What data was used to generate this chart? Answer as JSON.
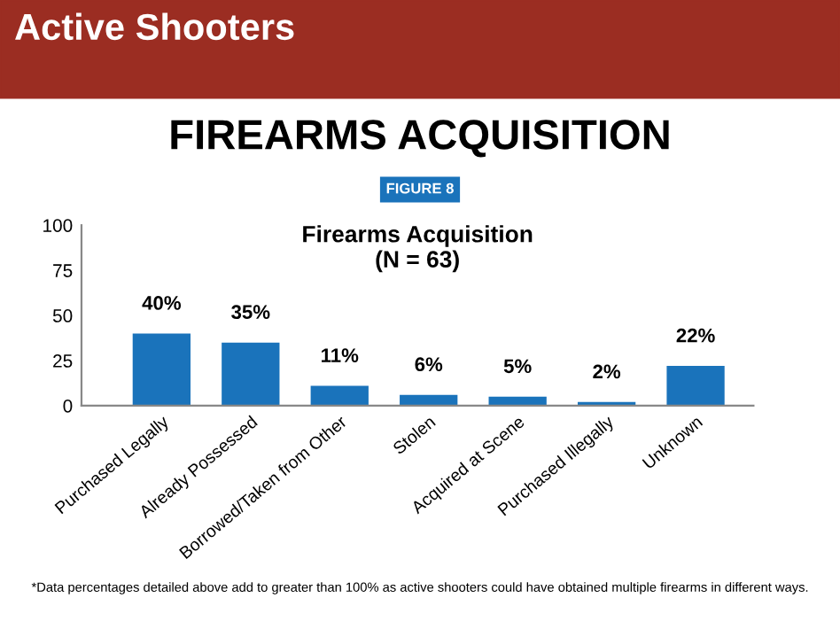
{
  "chart_data": {
    "type": "bar",
    "title": "FIREARMS ACQUISITION",
    "subtitle": "Firearms Acquisition\n(N = 63)",
    "annotations": [
      "Active Shooters",
      "FIGURE 8",
      "*Data percentages detailed above add to greater than 100% as active shooters could have obtained multiple firearms in different ways."
    ],
    "categories": [
      "Purchased Legally",
      "Already Possessed",
      "Borrowed/Taken from Other",
      "Stolen",
      "Acquired at Scene",
      "Purchased Illegally",
      "Unknown"
    ],
    "values": [
      40,
      35,
      11,
      6,
      5,
      2,
      22
    ],
    "value_labels": [
      "40%",
      "35%",
      "11%",
      "6%",
      "5%",
      "2%",
      "22%"
    ],
    "color": "#1a73bb",
    "ylim": [
      0,
      100
    ],
    "yticks": [
      0,
      25,
      50,
      75,
      100
    ],
    "grid": false
  }
}
